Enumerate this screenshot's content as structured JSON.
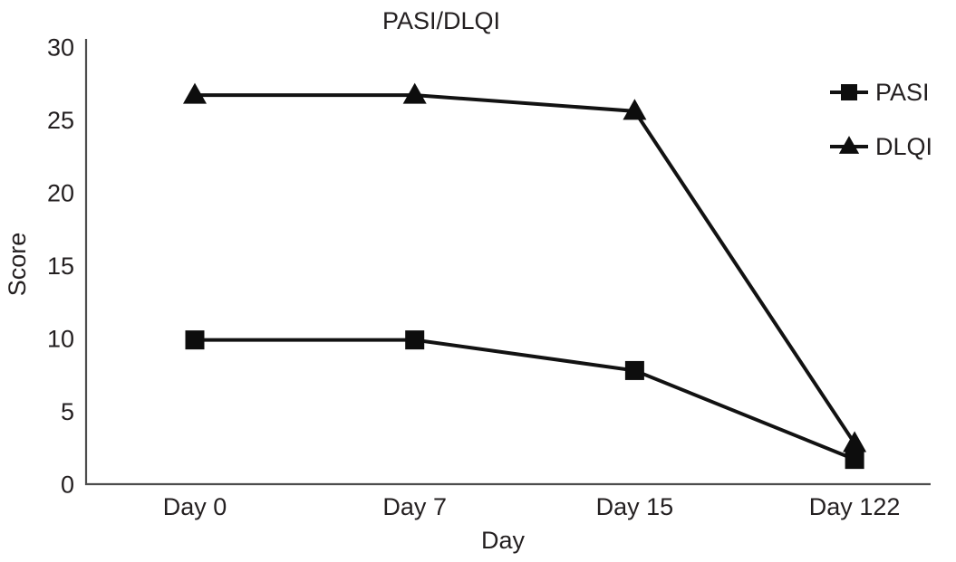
{
  "chart_data": {
    "type": "line",
    "title": "PASI/DLQI",
    "xlabel": "Day",
    "ylabel": "Score",
    "categories": [
      "Day 0",
      "Day 7",
      "Day 15",
      "Day 122"
    ],
    "series": [
      {
        "name": "PASI",
        "marker": "square",
        "values": [
          9.9,
          9.9,
          7.8,
          1.7
        ]
      },
      {
        "name": "DLQI",
        "marker": "triangle",
        "values": [
          26.7,
          26.7,
          25.6,
          2.8
        ]
      }
    ],
    "ylim": [
      0,
      30
    ],
    "yticks": [
      0,
      5,
      10,
      15,
      20,
      25,
      30
    ],
    "grid": false,
    "legend_position": "top-right",
    "legend_labels": [
      "PASI",
      "DLQI"
    ],
    "line_color": "#121212",
    "marker_color": "#0d0d0d",
    "axis_color": "#4d4d4d",
    "text_color": "#231f20",
    "background": "#ffffff"
  }
}
